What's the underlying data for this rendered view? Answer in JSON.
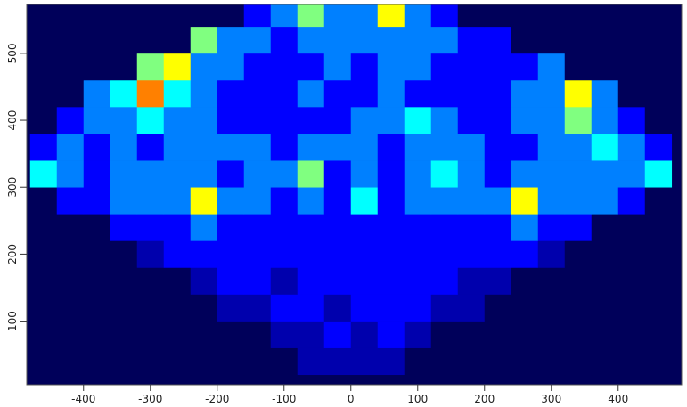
{
  "chart_data": {
    "type": "heatmap",
    "xlim": [
      -485,
      495
    ],
    "ylim": [
      5,
      573
    ],
    "xticks": [
      -400,
      -300,
      -200,
      -100,
      0,
      100,
      200,
      300,
      400
    ],
    "yticks": [
      100,
      200,
      300,
      400,
      500
    ],
    "xbins": [
      -480,
      -440,
      -400,
      -360,
      -320,
      -280,
      -240,
      -200,
      -160,
      -120,
      -80,
      -40,
      0,
      40,
      80,
      120,
      160,
      200,
      240,
      280,
      320,
      360,
      400,
      440,
      480
    ],
    "ybins": [
      20,
      60,
      100,
      140,
      180,
      220,
      260,
      300,
      340,
      380,
      420,
      460,
      500,
      540,
      580
    ],
    "zlim": [
      0,
      10
    ],
    "colorscale": [
      "#00005a",
      "#0000ff",
      "#00ffff",
      "#ffff00",
      "#ff0000",
      "#800000"
    ],
    "z": [
      [
        0,
        0,
        0,
        0,
        0,
        0,
        0,
        0,
        0,
        0,
        1,
        1,
        1,
        1,
        0,
        0,
        0,
        0,
        0,
        0,
        0,
        0,
        0,
        0
      ],
      [
        0,
        0,
        0,
        0,
        0,
        0,
        0,
        0,
        0,
        1,
        1,
        2,
        1,
        2,
        1,
        0,
        0,
        0,
        0,
        0,
        0,
        0,
        0,
        0
      ],
      [
        0,
        0,
        0,
        0,
        0,
        0,
        0,
        1,
        1,
        2,
        2,
        1,
        2,
        2,
        2,
        1,
        1,
        0,
        0,
        0,
        0,
        0,
        0,
        0
      ],
      [
        0,
        0,
        0,
        0,
        0,
        0,
        1,
        2,
        2,
        1,
        2,
        2,
        2,
        2,
        2,
        2,
        1,
        1,
        0,
        0,
        0,
        0,
        0,
        0
      ],
      [
        0,
        0,
        0,
        0,
        1,
        2,
        2,
        2,
        2,
        2,
        2,
        2,
        2,
        2,
        2,
        2,
        2,
        2,
        2,
        1,
        0,
        0,
        0,
        0
      ],
      [
        0,
        0,
        0,
        2,
        2,
        2,
        3,
        2,
        2,
        2,
        2,
        2,
        2,
        2,
        2,
        2,
        2,
        2,
        3,
        2,
        2,
        0,
        0,
        0
      ],
      [
        0,
        2,
        2,
        3,
        3,
        3,
        6,
        3,
        3,
        2,
        3,
        2,
        4,
        2,
        3,
        3,
        3,
        3,
        6,
        3,
        3,
        3,
        2,
        0
      ],
      [
        4,
        3,
        2,
        3,
        3,
        3,
        3,
        2,
        3,
        3,
        5,
        2,
        3,
        2,
        3,
        4,
        3,
        2,
        3,
        3,
        3,
        3,
        3,
        4
      ],
      [
        2,
        3,
        2,
        3,
        2,
        3,
        3,
        3,
        3,
        2,
        3,
        3,
        3,
        2,
        3,
        3,
        3,
        2,
        2,
        3,
        3,
        4,
        3,
        2
      ],
      [
        0,
        2,
        3,
        3,
        4,
        3,
        3,
        2,
        2,
        2,
        2,
        2,
        3,
        3,
        4,
        3,
        2,
        2,
        3,
        3,
        5,
        3,
        2,
        0
      ],
      [
        0,
        0,
        3,
        4,
        7,
        4,
        3,
        2,
        2,
        2,
        3,
        2,
        2,
        3,
        2,
        2,
        2,
        2,
        3,
        3,
        6,
        3,
        0,
        0
      ],
      [
        0,
        0,
        0,
        0,
        5,
        6,
        3,
        3,
        2,
        2,
        2,
        3,
        2,
        3,
        3,
        2,
        2,
        2,
        2,
        3,
        0,
        0,
        0,
        0
      ],
      [
        0,
        0,
        0,
        0,
        0,
        0,
        5,
        3,
        3,
        2,
        3,
        3,
        3,
        3,
        3,
        3,
        2,
        2,
        0,
        0,
        0,
        0,
        0,
        0
      ],
      [
        0,
        0,
        0,
        0,
        0,
        0,
        0,
        0,
        2,
        3,
        5,
        3,
        3,
        6,
        3,
        2,
        0,
        0,
        0,
        0,
        0,
        0,
        0,
        0
      ]
    ]
  }
}
